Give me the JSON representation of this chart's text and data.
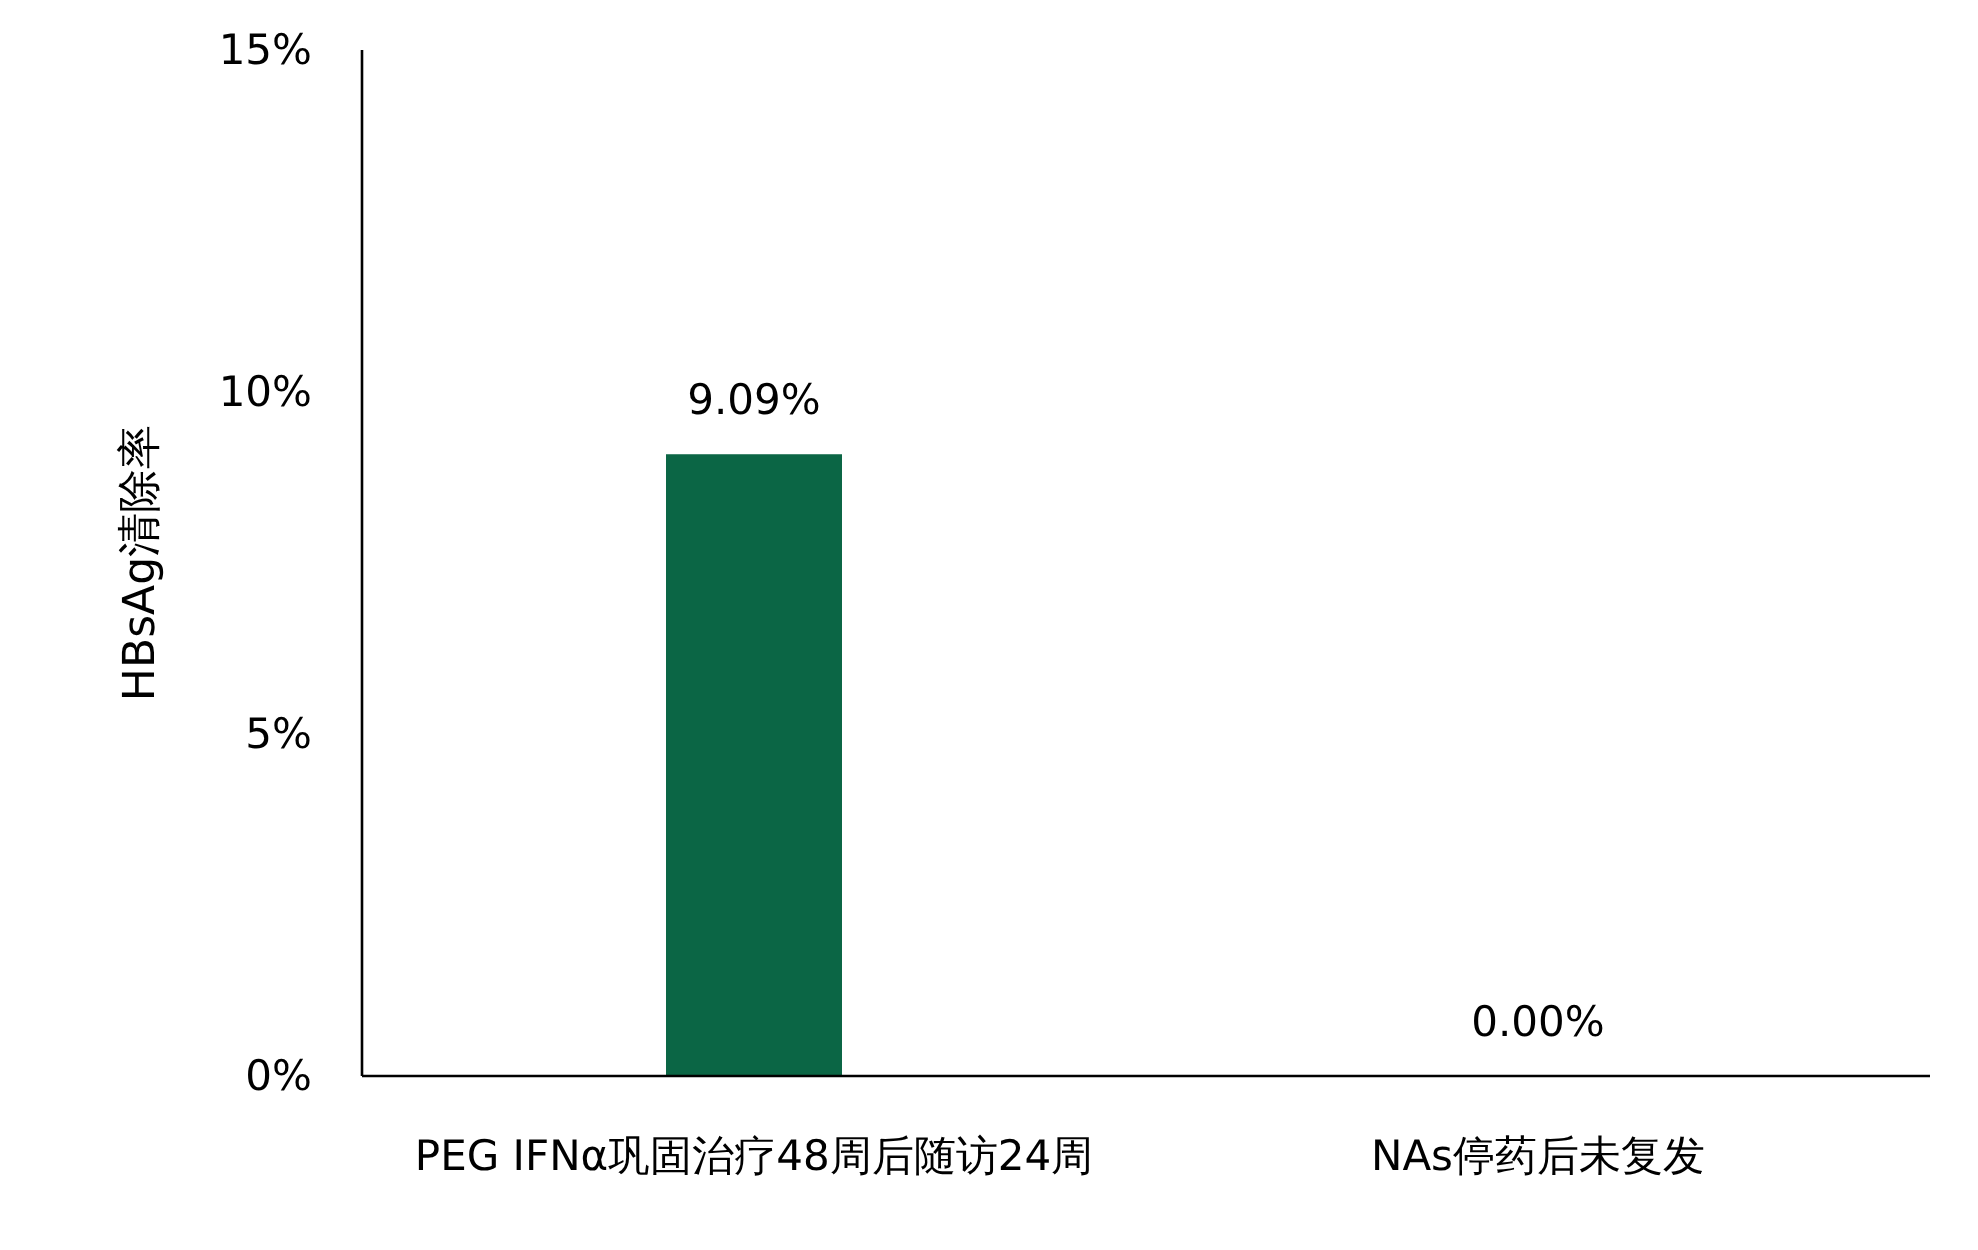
{
  "chart_data": {
    "type": "bar",
    "ylabel": "HBsAg清除率",
    "categories": [
      "PEG IFNα巩固治疗48周后随访24周",
      "NAs停药后未复发"
    ],
    "values": [
      9.09,
      0
    ],
    "color": "#0b6645",
    "value_labels": [
      "9.09%",
      "0.00%"
    ],
    "ylim": [
      0,
      15
    ],
    "yticks": [
      {
        "value": 0,
        "label": "0%"
      },
      {
        "value": 5,
        "label": "5%"
      },
      {
        "value": 10,
        "label": "10%"
      },
      {
        "value": 15,
        "label": "15%"
      }
    ],
    "grid": false
  }
}
